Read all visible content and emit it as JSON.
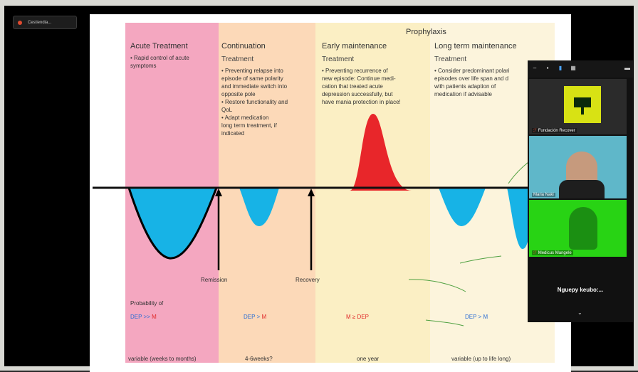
{
  "meeting": {
    "top_label": "Cestiendia...",
    "self_name_short": "Nguepy keubo:..."
  },
  "slide": {
    "overhead": "Prophylaxis",
    "phases": [
      {
        "title": "Acute Treatment",
        "subtitle": "",
        "bullets": "• Rapid control of acute\nsymptoms",
        "duration": "variable (weeks to months)"
      },
      {
        "title": "Continuation",
        "subtitle": "Treatment",
        "bullets": "• Preventing relapse into\nepisode of same polarity\nand immediate switch into\nopposite pole\n• Restore functionality and\nQoL\n• Adapt medication\nlong term treatment, if\nindicated",
        "duration": "4-6weeks?"
      },
      {
        "title": "Early maintenance",
        "subtitle": "Treatment",
        "bullets": "• Preventing recurrence of\nnew episode: Continue medi-\ncation that treated acute\ndepression successfully, but\nhave mania protection in place!",
        "duration": "one year"
      },
      {
        "title": "Long term maintenance",
        "subtitle": "Treatment",
        "bullets": "• Consider predominant polari\nepisodes over life span and d\nwith patients adaption of\nmedication if advisable",
        "duration": "variable (up to life long)"
      }
    ],
    "arrows": {
      "remission": "Remission",
      "recovery": "Recovery"
    },
    "probability_label": "Probability of",
    "probability": [
      {
        "dep": "DEP",
        "op": ">>",
        "m": "M"
      },
      {
        "dep": "DEP",
        "op": ">",
        "m": "M"
      },
      {
        "m": "M",
        "op": "≥",
        "dep": "DEP"
      },
      {
        "dep": "DEP",
        "op": ">",
        "m": "M"
      }
    ],
    "colors": {
      "depression": "#17b3e6",
      "mania": "#e8262a",
      "acute": "#f4a7c0",
      "continuation": "#fcd9b8",
      "early": "#fbefc4",
      "longterm": "#fcf4dc"
    }
  },
  "participants": [
    {
      "name": "Fundación Recover",
      "kind": "logo"
    },
    {
      "name": "Maria Naki",
      "kind": "video"
    },
    {
      "name": "Medicus Mangele",
      "kind": "green"
    }
  ],
  "icons": [
    "minimize-icon",
    "grid-icon",
    "gallery-icon",
    "speaker-view-icon",
    "more-icon",
    "expand-icon"
  ]
}
